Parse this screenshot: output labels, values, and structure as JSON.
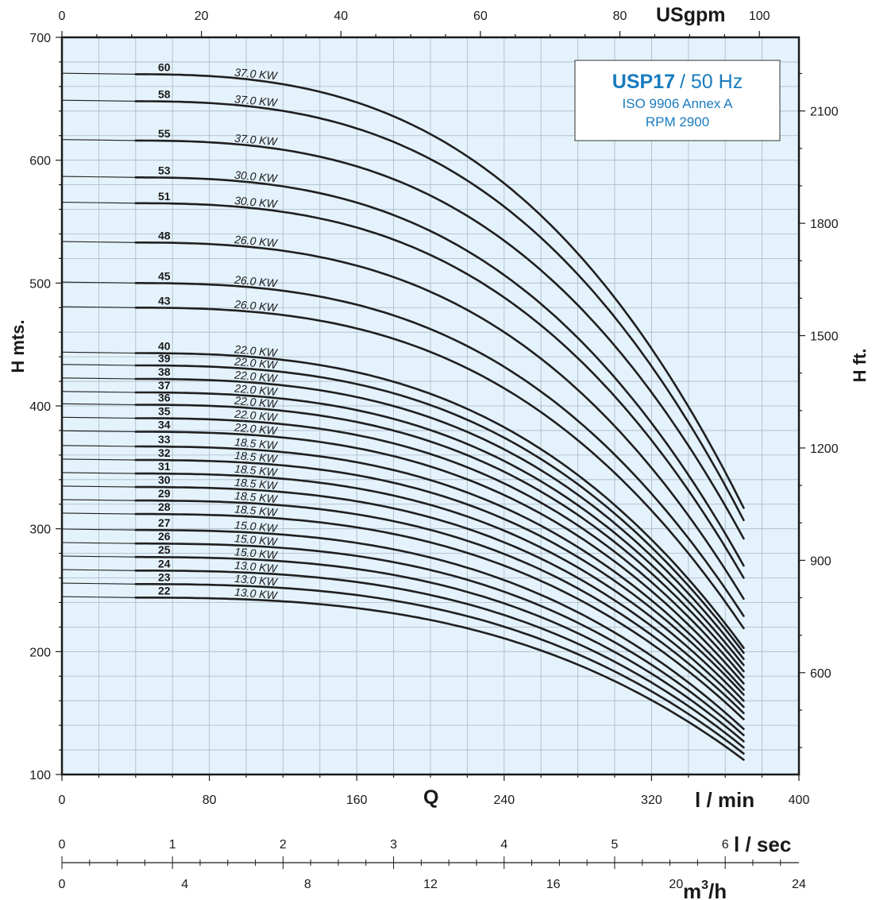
{
  "chart_data": {
    "type": "line",
    "info_box": {
      "model": "USP17",
      "frequency": "/ 50 Hz",
      "standard": "ISO 9906 Annex A",
      "rpm": "RPM 2900",
      "color": "#1a7bbf"
    },
    "colors": {
      "plot_background": "#e4f2fb",
      "grid": "#a9b8c4",
      "curve": "#1f1f1f"
    },
    "axes": {
      "left": {
        "label": "H mts.",
        "range": [
          100,
          700
        ],
        "ticks": [
          100,
          200,
          300,
          400,
          500,
          600,
          700
        ]
      },
      "right": {
        "label": "H ft.",
        "ticks": [
          600,
          900,
          1200,
          1500,
          1800,
          2100
        ]
      },
      "top": {
        "label": "USgpm",
        "range": [
          0,
          105.67
        ],
        "ticks": [
          0,
          20,
          40,
          60,
          80,
          100
        ]
      },
      "bottom": {
        "label": "l / min",
        "center_label": "Q",
        "range": [
          0,
          400
        ],
        "ticks": [
          0,
          80,
          160,
          240,
          320,
          400
        ]
      },
      "lsec": {
        "label": "l / sec",
        "range": [
          0,
          6.667
        ],
        "ticks": [
          0,
          1,
          2,
          3,
          4,
          5,
          6
        ]
      },
      "m3h": {
        "label": "m",
        "label_sup": "3",
        "label_end": "/h",
        "range": [
          0,
          24
        ],
        "ticks": [
          0,
          4,
          8,
          12,
          16,
          20,
          24
        ]
      }
    },
    "q_range": [
      40,
      370
    ],
    "series": [
      {
        "stages": "60",
        "power": "37.0 KW",
        "h0": 670,
        "h_end": 317
      },
      {
        "stages": "58",
        "power": "37.0 KW",
        "h0": 648,
        "h_end": 307
      },
      {
        "stages": "55",
        "power": "37.0 KW",
        "h0": 616,
        "h_end": 292
      },
      {
        "stages": "53",
        "power": "30.0 KW",
        "h0": 586,
        "h_end": 270
      },
      {
        "stages": "51",
        "power": "30.0 KW",
        "h0": 565,
        "h_end": 260
      },
      {
        "stages": "48",
        "power": "26.0 KW",
        "h0": 533,
        "h_end": 243
      },
      {
        "stages": "45",
        "power": "26.0 KW",
        "h0": 500,
        "h_end": 229
      },
      {
        "stages": "43",
        "power": "26.0 KW",
        "h0": 480,
        "h_end": 219
      },
      {
        "stages": "40",
        "power": "22.0 KW",
        "h0": 443,
        "h_end": 203
      },
      {
        "stages": "39",
        "power": "22.0 KW",
        "h0": 433,
        "h_end": 199
      },
      {
        "stages": "38",
        "power": "22.0 KW",
        "h0": 422,
        "h_end": 194
      },
      {
        "stages": "37",
        "power": "22.0 KW",
        "h0": 411,
        "h_end": 189
      },
      {
        "stages": "36",
        "power": "22.0 KW",
        "h0": 401,
        "h_end": 184
      },
      {
        "stages": "35",
        "power": "22.0 KW",
        "h0": 390,
        "h_end": 179
      },
      {
        "stages": "34",
        "power": "22.0 KW",
        "h0": 379,
        "h_end": 174
      },
      {
        "stages": "33",
        "power": "18.5 KW",
        "h0": 367,
        "h_end": 169
      },
      {
        "stages": "32",
        "power": "18.5 KW",
        "h0": 356,
        "h_end": 165
      },
      {
        "stages": "31",
        "power": "18.5 KW",
        "h0": 345,
        "h_end": 160
      },
      {
        "stages": "30",
        "power": "18.5 KW",
        "h0": 334,
        "h_end": 155
      },
      {
        "stages": "29",
        "power": "18.5 KW",
        "h0": 323,
        "h_end": 150
      },
      {
        "stages": "28",
        "power": "18.5 KW",
        "h0": 312,
        "h_end": 145
      },
      {
        "stages": "27",
        "power": "15.0 KW",
        "h0": 299,
        "h_end": 137
      },
      {
        "stages": "26",
        "power": "15.0 KW",
        "h0": 288,
        "h_end": 132
      },
      {
        "stages": "25",
        "power": "15.0 KW",
        "h0": 277,
        "h_end": 127
      },
      {
        "stages": "24",
        "power": "13.0 KW",
        "h0": 266,
        "h_end": 122
      },
      {
        "stages": "23",
        "power": "13.0 KW",
        "h0": 255,
        "h_end": 117
      },
      {
        "stages": "22",
        "power": "13.0 KW",
        "h0": 244,
        "h_end": 112
      }
    ]
  }
}
